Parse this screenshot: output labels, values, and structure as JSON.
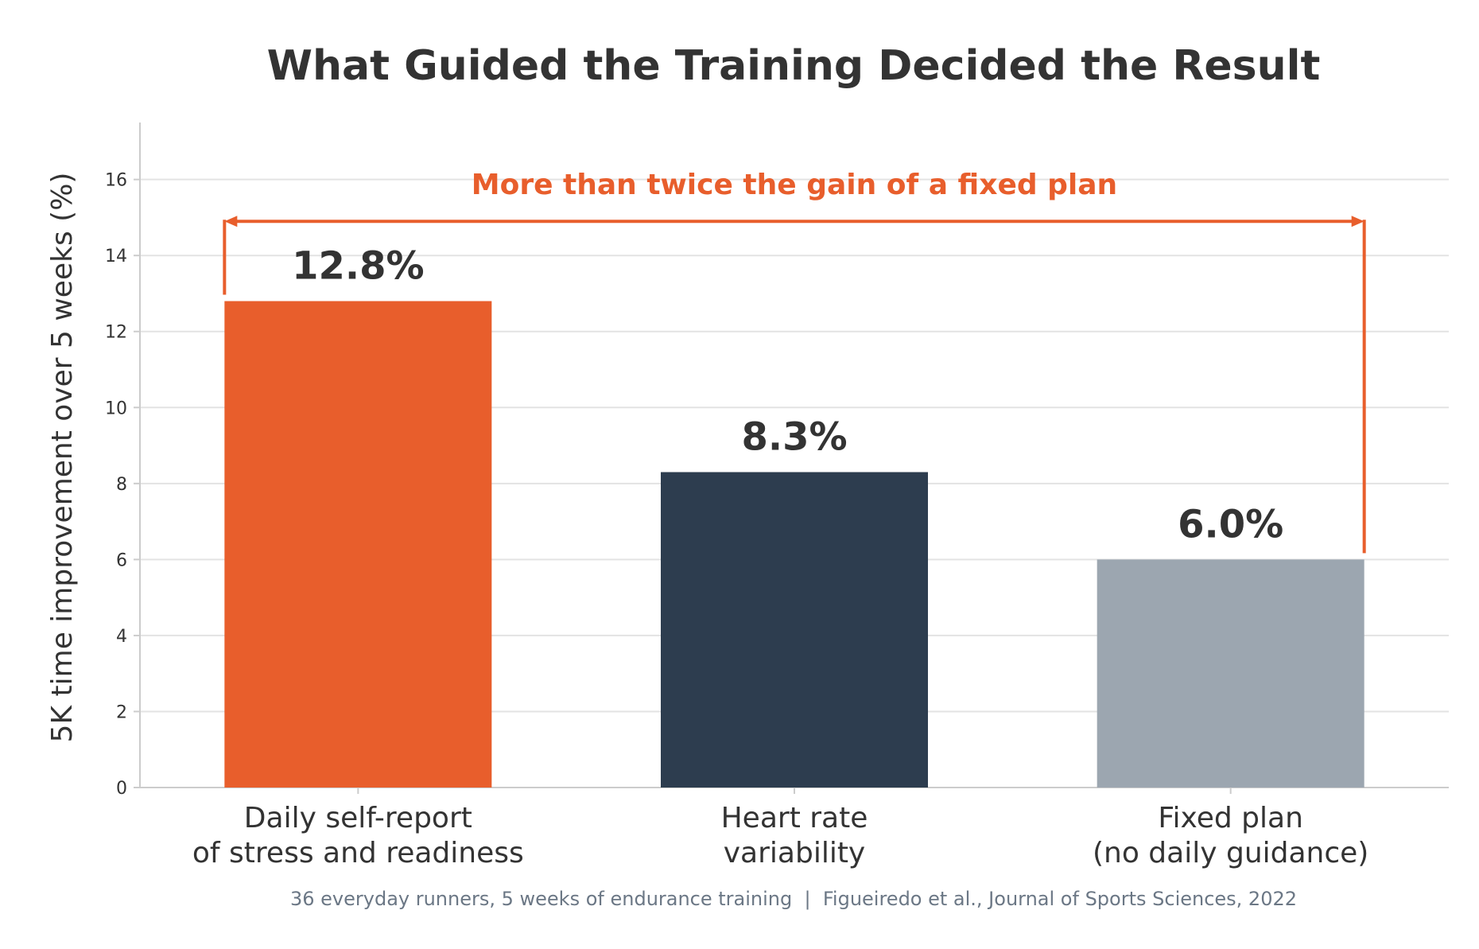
{
  "colors": {
    "accent": "#e85e2c",
    "navy": "#2d3d4f",
    "gray": "#9ca6b0",
    "text": "#333333",
    "muted": "#6b7785",
    "grid": "#e3e3e3",
    "axis": "#cccccc"
  },
  "chart_data": {
    "type": "bar",
    "title": "What Guided the Training Decided the Result",
    "ylabel": "5K time improvement over 5 weeks (%)",
    "xlabel": "",
    "ylim": [
      0,
      17.5
    ],
    "yticks": [
      0,
      2,
      4,
      6,
      8,
      10,
      12,
      14,
      16
    ],
    "grid": true,
    "categories": [
      [
        "Daily self-report",
        "of stress and readiness"
      ],
      [
        "Heart rate",
        "variability"
      ],
      [
        "Fixed plan",
        "(no daily guidance)"
      ]
    ],
    "values": [
      12.8,
      8.3,
      6.0
    ],
    "value_labels": [
      "12.8%",
      "8.3%",
      "6.0%"
    ],
    "bar_colors": [
      "#e85e2c",
      "#2d3d4f",
      "#9ca6b0"
    ],
    "annotation": {
      "text": "More than twice the gain of a fixed plan",
      "from_category": 0,
      "to_category": 2,
      "level": 14.9
    },
    "footnote": "36 everyday runners, 5 weeks of endurance training  |  Figueiredo et al., Journal of Sports Sciences, 2022"
  }
}
